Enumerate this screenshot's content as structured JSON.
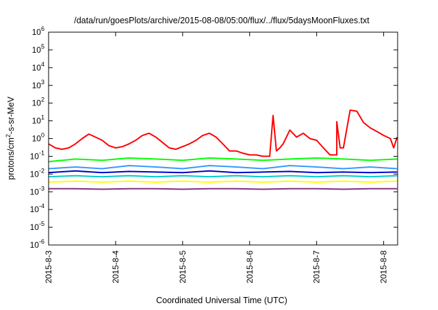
{
  "chart_data": {
    "type": "line",
    "title": "/data/run/goesPlots/archive/2015-08-08/05:00/flux/../flux/5daysMoonFluxes.txt",
    "xlabel": "Coordinated Universal Time (UTC)",
    "ylabel": "protons/cm²-s-sr-MeV",
    "y_scale": "log",
    "ylim": [
      1e-06,
      1000000.0
    ],
    "y_ticks": [
      {
        "base": "10",
        "exp": "-6"
      },
      {
        "base": "10",
        "exp": "-5"
      },
      {
        "base": "10",
        "exp": "-4"
      },
      {
        "base": "10",
        "exp": "-3"
      },
      {
        "base": "10",
        "exp": "-2"
      },
      {
        "base": "10",
        "exp": "-1"
      },
      {
        "base": "10",
        "exp": "0"
      },
      {
        "base": "10",
        "exp": "1"
      },
      {
        "base": "10",
        "exp": "2"
      },
      {
        "base": "10",
        "exp": "3"
      },
      {
        "base": "10",
        "exp": "4"
      },
      {
        "base": "10",
        "exp": "5"
      },
      {
        "base": "10",
        "exp": "6"
      }
    ],
    "xlim": [
      "2015-08-03 00:00",
      "2015-08-08 05:00"
    ],
    "x_ticks": [
      "2015-8-3",
      "2015-8-4",
      "2015-8-5",
      "2015-8-6",
      "2015-8-7",
      "2015-8-8"
    ],
    "grid": false,
    "series": [
      {
        "color": "#ff0000",
        "x_days": [
          0,
          0.1,
          0.2,
          0.3,
          0.4,
          0.5,
          0.6,
          0.7,
          0.8,
          0.9,
          1.0,
          1.1,
          1.2,
          1.3,
          1.4,
          1.5,
          1.6,
          1.7,
          1.8,
          1.9,
          2.0,
          2.1,
          2.2,
          2.3,
          2.4,
          2.5,
          2.6,
          2.7,
          2.8,
          2.9,
          3.0,
          3.1,
          3.2,
          3.3,
          3.35,
          3.4,
          3.45,
          3.5,
          3.6,
          3.7,
          3.8,
          3.9,
          4.0,
          4.1,
          4.2,
          4.3,
          4.3,
          4.35,
          4.4,
          4.5,
          4.6,
          4.7,
          4.8,
          4.9,
          5.0,
          5.1,
          5.15,
          5.2
        ],
        "values": [
          0.5,
          0.3,
          0.25,
          0.3,
          0.5,
          1.0,
          1.8,
          1.2,
          0.8,
          0.4,
          0.3,
          0.35,
          0.5,
          0.8,
          1.5,
          2.0,
          1.2,
          0.6,
          0.3,
          0.25,
          0.35,
          0.5,
          0.8,
          1.5,
          2.0,
          1.2,
          0.5,
          0.2,
          0.2,
          0.15,
          0.12,
          0.12,
          0.1,
          0.1,
          20,
          0.2,
          0.3,
          0.5,
          3.0,
          1.2,
          2.0,
          1.0,
          0.8,
          0.3,
          0.12,
          0.12,
          9.0,
          0.3,
          0.3,
          40,
          35,
          8.0,
          4.0,
          2.5,
          1.5,
          1.0,
          0.3,
          1.2
        ]
      },
      {
        "color": "#00ff00",
        "x_days": [
          0,
          0.4,
          0.8,
          1.2,
          1.6,
          2.0,
          2.4,
          2.8,
          3.2,
          3.6,
          4.0,
          4.4,
          4.8,
          5.2
        ],
        "values": [
          0.05,
          0.07,
          0.06,
          0.08,
          0.07,
          0.06,
          0.08,
          0.07,
          0.06,
          0.07,
          0.08,
          0.07,
          0.06,
          0.07
        ]
      },
      {
        "color": "#3399ff",
        "x_days": [
          0,
          0.4,
          0.8,
          1.2,
          1.6,
          2.0,
          2.4,
          2.8,
          3.2,
          3.6,
          4.0,
          4.4,
          4.8,
          5.2
        ],
        "values": [
          0.02,
          0.025,
          0.02,
          0.03,
          0.025,
          0.02,
          0.03,
          0.025,
          0.02,
          0.03,
          0.025,
          0.02,
          0.025,
          0.02
        ]
      },
      {
        "color": "#0000cc",
        "x_days": [
          0,
          0.4,
          0.8,
          1.2,
          1.6,
          2.0,
          2.4,
          2.8,
          3.2,
          3.6,
          4.0,
          4.4,
          4.8,
          5.2
        ],
        "values": [
          0.012,
          0.015,
          0.012,
          0.014,
          0.013,
          0.012,
          0.015,
          0.012,
          0.013,
          0.014,
          0.012,
          0.013,
          0.012,
          0.013
        ]
      },
      {
        "color": "#00cccc",
        "x_days": [
          0,
          0.4,
          0.8,
          1.2,
          1.6,
          2.0,
          2.4,
          2.8,
          3.2,
          3.6,
          4.0,
          4.4,
          4.8,
          5.2
        ],
        "values": [
          0.007,
          0.008,
          0.007,
          0.008,
          0.007,
          0.008,
          0.007,
          0.008,
          0.007,
          0.008,
          0.007,
          0.008,
          0.007,
          0.008
        ]
      },
      {
        "color": "#ffff00",
        "x_days": [
          0,
          0.4,
          0.8,
          1.2,
          1.6,
          2.0,
          2.4,
          2.8,
          3.2,
          3.6,
          4.0,
          4.4,
          4.8,
          5.2
        ],
        "values": [
          0.0035,
          0.004,
          0.0035,
          0.004,
          0.0035,
          0.004,
          0.0035,
          0.004,
          0.0035,
          0.004,
          0.0035,
          0.004,
          0.0035,
          0.004
        ]
      },
      {
        "color": "#803080",
        "x_days": [
          0,
          0.4,
          0.8,
          1.2,
          1.6,
          2.0,
          2.4,
          2.8,
          3.2,
          3.6,
          4.0,
          4.4,
          4.8,
          5.2
        ],
        "values": [
          0.0015,
          0.0015,
          0.0014,
          0.0015,
          0.0015,
          0.0014,
          0.0015,
          0.0015,
          0.0014,
          0.0015,
          0.0015,
          0.0014,
          0.0015,
          0.0015
        ]
      }
    ]
  }
}
